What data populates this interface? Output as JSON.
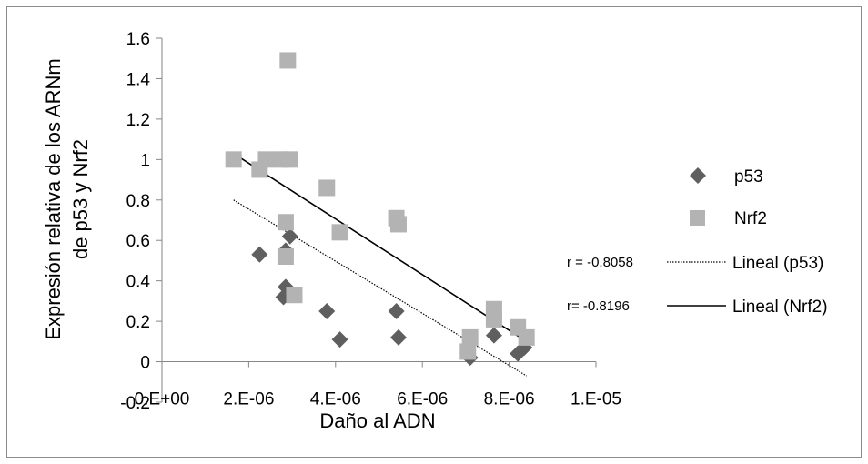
{
  "chart_data": {
    "type": "scatter",
    "title": "",
    "xlabel": "Daño al ADN",
    "ylabel_lines": [
      "Expresión relativa de los ARNm",
      "de p53 y Nrf2"
    ],
    "xlim": [
      0,
      1e-05
    ],
    "ylim": [
      -0.2,
      1.6
    ],
    "x_ticks": [
      0,
      2e-06,
      4e-06,
      6e-06,
      8e-06,
      1e-05
    ],
    "x_tick_labels": [
      "0.E+00",
      "2.E-06",
      "4.E-06",
      "6.E-06",
      "8.E-06",
      "1.E-05"
    ],
    "y_ticks": [
      -0.2,
      0,
      0.2,
      0.4,
      0.6,
      0.8,
      1,
      1.2,
      1.4,
      1.6
    ],
    "y_tick_labels": [
      "-0.2",
      "0",
      "0.2",
      "0.4",
      "0.6",
      "0.8",
      "1",
      "1.2",
      "1.4",
      "1.6"
    ],
    "grid": false,
    "legend_position": "right",
    "series": [
      {
        "name": "p53",
        "marker": "diamond",
        "color": "#5f5f5f",
        "points": [
          [
            2.25e-06,
            0.53
          ],
          [
            2.85e-06,
            0.55
          ],
          [
            2.95e-06,
            0.62
          ],
          [
            2.8e-06,
            0.32
          ],
          [
            2.85e-06,
            0.37
          ],
          [
            3.8e-06,
            0.25
          ],
          [
            4.1e-06,
            0.11
          ],
          [
            5.4e-06,
            0.25
          ],
          [
            5.45e-06,
            0.12
          ],
          [
            7.1e-06,
            0.02
          ],
          [
            7.65e-06,
            0.13
          ],
          [
            8.2e-06,
            0.04
          ],
          [
            8.35e-06,
            0.07
          ]
        ]
      },
      {
        "name": "Nrf2",
        "marker": "square",
        "color": "#b3b3b3",
        "points": [
          [
            1.65e-06,
            1.0
          ],
          [
            2.25e-06,
            0.95
          ],
          [
            2.4e-06,
            1.0
          ],
          [
            2.75e-06,
            1.0
          ],
          [
            2.95e-06,
            1.0
          ],
          [
            2.9e-06,
            1.49
          ],
          [
            2.85e-06,
            0.69
          ],
          [
            2.85e-06,
            0.52
          ],
          [
            3.05e-06,
            0.33
          ],
          [
            3.8e-06,
            0.86
          ],
          [
            4.1e-06,
            0.64
          ],
          [
            5.4e-06,
            0.71
          ],
          [
            5.45e-06,
            0.68
          ],
          [
            7.1e-06,
            0.12
          ],
          [
            7.05e-06,
            0.05
          ],
          [
            7.65e-06,
            0.26
          ],
          [
            7.65e-06,
            0.21
          ],
          [
            8.2e-06,
            0.17
          ],
          [
            8.4e-06,
            0.12
          ]
        ]
      },
      {
        "name": "Lineal (p53)",
        "type": "trendline",
        "style": "dotted",
        "color": "#000000",
        "from": [
          1.65e-06,
          0.8
        ],
        "to": [
          8.4e-06,
          -0.07
        ],
        "annotation": "r = -0.8058"
      },
      {
        "name": "Lineal (Nrf2)",
        "type": "trendline",
        "style": "solid",
        "color": "#000000",
        "from": [
          1.65e-06,
          1.03
        ],
        "to": [
          8.4e-06,
          0.1
        ],
        "annotation": "r= -0.8196"
      }
    ]
  }
}
